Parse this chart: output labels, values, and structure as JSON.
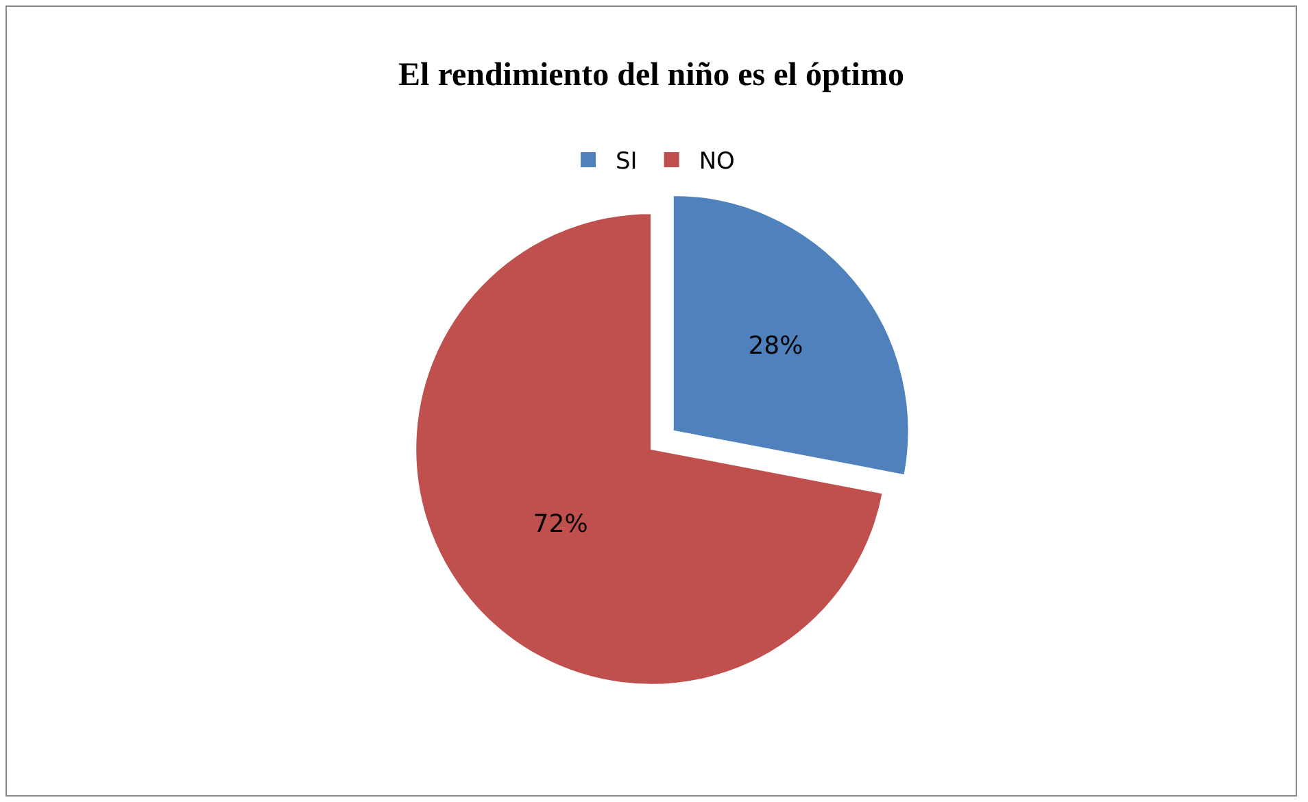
{
  "chart_data": {
    "type": "pie",
    "title": "El rendimiento del niño es el óptimo",
    "categories": [
      "SI",
      "NO"
    ],
    "values": [
      28,
      72
    ],
    "value_labels": [
      "28%",
      "72%"
    ],
    "colors": [
      "#4f81bd",
      "#c0504d"
    ],
    "legend": "top"
  }
}
